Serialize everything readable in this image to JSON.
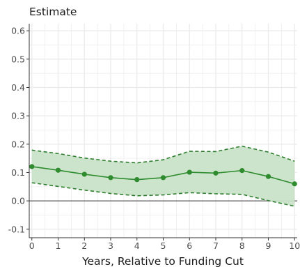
{
  "chart_data": {
    "type": "line",
    "ylabel": "Estimate",
    "xlabel": "Years, Relative to Funding Cut",
    "x": [
      0,
      1,
      2,
      3,
      4,
      5,
      6,
      7,
      8,
      9,
      10
    ],
    "series": [
      {
        "values": [
          0.121,
          0.108,
          0.094,
          0.082,
          0.075,
          0.082,
          0.101,
          0.098,
          0.107,
          0.086,
          0.06
        ],
        "lower": [
          0.064,
          0.051,
          0.038,
          0.026,
          0.018,
          0.021,
          0.029,
          0.025,
          0.023,
          0.001,
          -0.019
        ],
        "upper": [
          0.179,
          0.167,
          0.151,
          0.14,
          0.134,
          0.145,
          0.175,
          0.174,
          0.193,
          0.172,
          0.14
        ]
      }
    ],
    "xticks": [
      "0",
      "1",
      "2",
      "3",
      "4",
      "5",
      "6",
      "7",
      "8",
      "9",
      "10"
    ],
    "yticks": [
      "-0.1",
      "0.0",
      "0.1",
      "0.2",
      "0.3",
      "0.4",
      "0.5",
      "0.6"
    ],
    "ytick_values": [
      -0.1,
      0.0,
      0.1,
      0.2,
      0.3,
      0.4,
      0.5,
      0.6
    ],
    "xlim": [
      -0.1,
      10.1
    ],
    "ylim": [
      -0.13,
      0.625
    ],
    "reference_line_y": 0,
    "grid": true,
    "legend": "none",
    "colors": {
      "line": "#2e8b2e",
      "band_fill": "#c8e3c8",
      "band_edge": "#2e7d2e",
      "grid": "#ebebeb",
      "reference_line": "#666666",
      "axis": "#333333"
    }
  }
}
